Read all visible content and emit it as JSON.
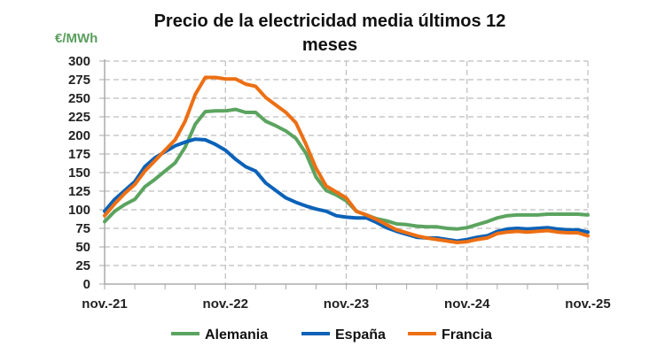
{
  "chart_data": {
    "type": "line",
    "title_lines": [
      "Precio de la electricidad media últimos 12",
      "meses"
    ],
    "ylabel": "€/MWh",
    "xlabel": "",
    "ylim": [
      0,
      300
    ],
    "yticks": [
      0,
      25,
      50,
      75,
      100,
      125,
      150,
      175,
      200,
      225,
      250,
      275,
      300
    ],
    "x_tick_labels": [
      "nov.-21",
      "nov.-22",
      "nov.-23",
      "nov.-24",
      "nov.-25"
    ],
    "months_count": 49,
    "grid": true,
    "legend_position": "bottom",
    "series": [
      {
        "name": "Alemania",
        "color": "#5BA45F",
        "values": [
          84,
          98,
          107,
          114,
          131,
          141,
          152,
          163,
          184,
          215,
          232,
          233,
          233,
          235,
          231,
          231,
          219,
          213,
          206,
          196,
          176,
          144,
          126,
          120,
          112,
          98,
          93,
          88,
          85,
          81,
          80,
          78,
          77,
          77,
          75,
          74,
          76,
          80,
          84,
          89,
          92,
          93,
          93,
          93,
          94,
          94,
          94,
          94,
          93
        ]
      },
      {
        "name": "España",
        "color": "#0B62B8",
        "values": [
          98,
          114,
          126,
          138,
          158,
          170,
          178,
          186,
          191,
          195,
          194,
          188,
          180,
          168,
          158,
          152,
          136,
          126,
          116,
          110,
          105,
          101,
          98,
          92,
          90,
          89,
          89,
          83,
          76,
          71,
          67,
          63,
          62,
          62,
          60,
          58,
          60,
          63,
          65,
          71,
          74,
          75,
          74,
          75,
          76,
          74,
          73,
          73,
          70
        ]
      },
      {
        "name": "Francia",
        "color": "#ED6F13",
        "values": [
          92,
          108,
          122,
          134,
          152,
          166,
          180,
          194,
          219,
          255,
          278,
          278,
          276,
          276,
          269,
          266,
          251,
          241,
          231,
          217,
          188,
          156,
          132,
          124,
          116,
          98,
          93,
          87,
          80,
          73,
          69,
          65,
          62,
          60,
          58,
          56,
          57,
          60,
          62,
          68,
          70,
          71,
          70,
          71,
          72,
          70,
          69,
          69,
          65
        ]
      }
    ]
  }
}
